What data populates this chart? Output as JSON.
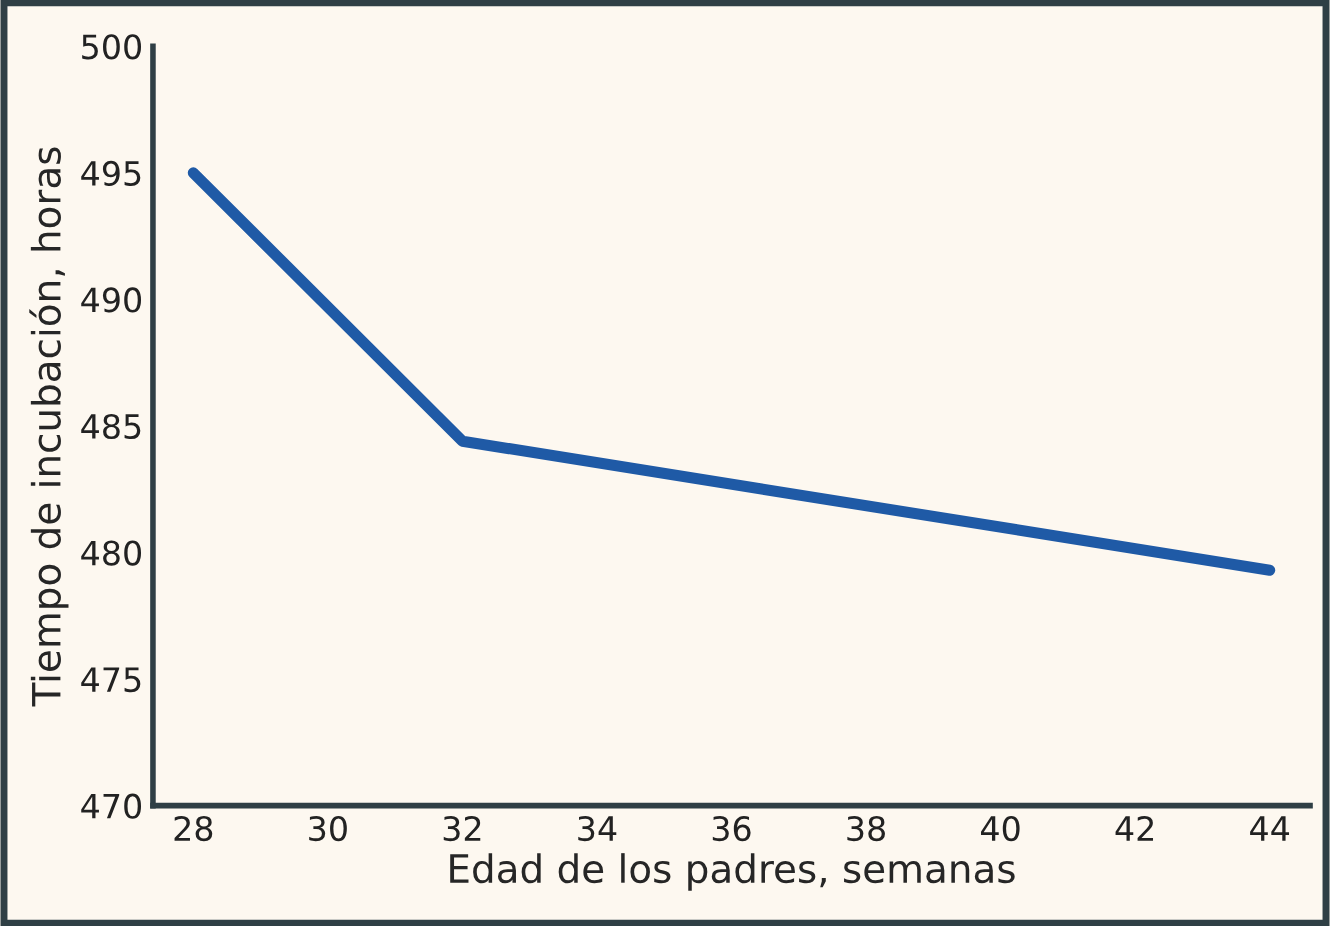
{
  "chart_data": {
    "type": "line",
    "xlabel": "Edad de los padres, semanas",
    "ylabel": "Tiempo de incubación, horas",
    "x": [
      28,
      32,
      44
    ],
    "series": [
      {
        "color": "#1f5aa6",
        "values": [
          495,
          484.4,
          479.3
        ]
      }
    ],
    "xlim": [
      27.4,
      44.6
    ],
    "xticks": [
      28,
      30,
      32,
      34,
      36,
      38,
      40,
      42,
      44
    ],
    "ylim": [
      470,
      500
    ],
    "yticks": [
      470,
      475,
      480,
      485,
      490,
      495,
      500
    ],
    "grid": false,
    "legend": false
  }
}
